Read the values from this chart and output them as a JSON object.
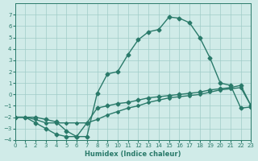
{
  "xlabel": "Humidex (Indice chaleur)",
  "bg_color": "#d0ebe8",
  "grid_color": "#a0ccc8",
  "line_color": "#2a7a6a",
  "xlim": [
    0,
    23
  ],
  "ylim": [
    -4,
    8
  ],
  "xticks": [
    0,
    1,
    2,
    3,
    4,
    5,
    6,
    7,
    8,
    9,
    10,
    11,
    12,
    13,
    14,
    15,
    16,
    17,
    18,
    19,
    20,
    21,
    22,
    23
  ],
  "yticks": [
    -4,
    -3,
    -2,
    -1,
    0,
    1,
    2,
    3,
    4,
    5,
    6,
    7
  ],
  "line1_x": [
    0,
    1,
    2,
    3,
    4,
    5,
    6,
    7,
    8,
    9,
    10,
    11,
    12,
    13,
    14,
    15,
    16,
    17,
    18,
    19,
    20,
    21,
    22,
    23
  ],
  "line1_y": [
    -2,
    -2,
    -2.5,
    -3,
    -3.5,
    -3.7,
    -3.7,
    -2.5,
    -1.2,
    -1.0,
    -0.8,
    -0.7,
    -0.5,
    -0.3,
    -0.2,
    -0.1,
    0.0,
    0.1,
    0.2,
    0.4,
    0.5,
    0.6,
    0.8,
    -1.0
  ],
  "line2_x": [
    0,
    1,
    2,
    3,
    4,
    5,
    6,
    7,
    8,
    9,
    10,
    11,
    12,
    13,
    14,
    15,
    16,
    17,
    18,
    19,
    20,
    21,
    22,
    23
  ],
  "line2_y": [
    -2,
    -2,
    -2.2,
    -2.5,
    -2.5,
    -2.5,
    -2.5,
    -2.5,
    -2.2,
    -1.8,
    -1.5,
    -1.2,
    -1.0,
    -0.7,
    -0.5,
    -0.3,
    -0.2,
    -0.1,
    0.0,
    0.2,
    0.4,
    0.5,
    0.6,
    -1.0
  ],
  "line3_x": [
    0,
    2,
    3,
    4,
    5,
    6,
    7,
    8,
    9,
    10,
    11,
    12,
    13,
    14,
    15,
    16,
    17,
    18,
    19,
    20,
    21,
    22,
    23
  ],
  "line3_y": [
    -2,
    -2,
    -2.2,
    -2.4,
    -3.2,
    -3.7,
    -3.7,
    0.1,
    1.8,
    2.0,
    3.5,
    4.8,
    5.5,
    5.7,
    6.8,
    6.7,
    6.3,
    5.0,
    3.2,
    1.0,
    0.8,
    -1.2,
    -1.1
  ]
}
